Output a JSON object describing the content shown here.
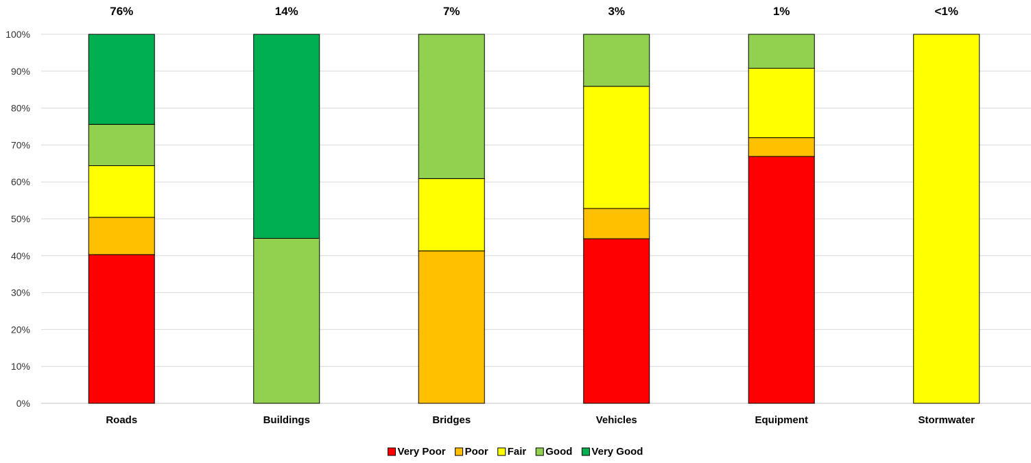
{
  "chart_data": {
    "type": "bar",
    "stacked": true,
    "categories": [
      "Roads",
      "Buildings",
      "Bridges",
      "Vehicles",
      "Equipment",
      "Stormwater"
    ],
    "top_labels": [
      "76%",
      "14%",
      "7%",
      "3%",
      "1%",
      "<1%"
    ],
    "y_ticks": [
      "0%",
      "10%",
      "20%",
      "30%",
      "40%",
      "50%",
      "60%",
      "70%",
      "80%",
      "90%",
      "100%"
    ],
    "ylim": [
      0,
      100
    ],
    "grid": true,
    "legend_position": "bottom",
    "series": [
      {
        "name": "Very Poor",
        "color": "#ff0000",
        "values": [
          40.3,
          0,
          0,
          44.6,
          66.9,
          0
        ]
      },
      {
        "name": "Poor",
        "color": "#ffc000",
        "values": [
          10.1,
          0,
          41.3,
          8.2,
          5.1,
          0
        ]
      },
      {
        "name": "Fair",
        "color": "#ffff00",
        "values": [
          14.0,
          0,
          19.6,
          33.1,
          18.8,
          100
        ]
      },
      {
        "name": "Good",
        "color": "#92d050",
        "values": [
          11.2,
          44.7,
          39.1,
          14.1,
          9.2,
          0
        ]
      },
      {
        "name": "Very Good",
        "color": "#00b050",
        "values": [
          24.4,
          55.3,
          0,
          0,
          0,
          0
        ]
      }
    ]
  }
}
